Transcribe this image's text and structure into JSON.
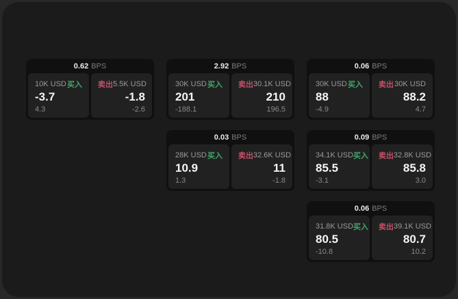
{
  "labels": {
    "bps": "BPS",
    "buy": "买入",
    "sell": "卖出"
  },
  "colors": {
    "background": "#282828",
    "surface": "#1b1b1b",
    "card": "#101010",
    "panel": "#212121",
    "buy_accent": "#3fa76a",
    "sell_accent": "#c44f68"
  },
  "cards": [
    {
      "bps": "0.62",
      "buy": {
        "amount": "10K USD",
        "value": "-3.7",
        "sub": "4.3"
      },
      "sell": {
        "amount": "5.5K USD",
        "value": "-1.8",
        "sub": "-2.6"
      }
    },
    {
      "bps": "2.92",
      "buy": {
        "amount": "30K USD",
        "value": "201",
        "sub": "-188.1"
      },
      "sell": {
        "amount": "30.1K USD",
        "value": "210",
        "sub": "196.5"
      }
    },
    {
      "bps": "0.06",
      "buy": {
        "amount": "30K USD",
        "value": "88",
        "sub": "-4.9"
      },
      "sell": {
        "amount": "30K USD",
        "value": "88.2",
        "sub": "4.7"
      }
    },
    {
      "bps": "0.03",
      "buy": {
        "amount": "28K USD",
        "value": "10.9",
        "sub": "1.3"
      },
      "sell": {
        "amount": "32.6K USD",
        "value": "11",
        "sub": "-1.8"
      }
    },
    {
      "bps": "0.09",
      "buy": {
        "amount": "34.1K USD",
        "value": "85.5",
        "sub": "-3.1"
      },
      "sell": {
        "amount": "32.8K USD",
        "value": "85.8",
        "sub": "3.0"
      }
    },
    {
      "bps": "0.06",
      "buy": {
        "amount": "31.8K USD",
        "value": "80.5",
        "sub": "-10.8"
      },
      "sell": {
        "amount": "39.1K USD",
        "value": "80.7",
        "sub": "10.2"
      }
    }
  ]
}
